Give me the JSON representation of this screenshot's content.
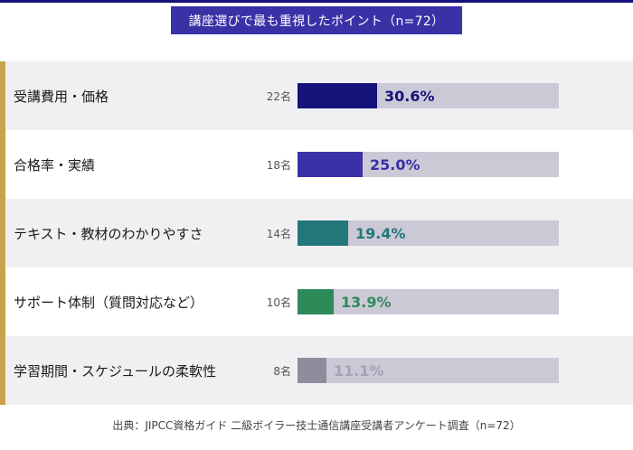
{
  "header": {
    "title": "講座選びで最も重視したポイント（n=72）"
  },
  "chart_data": {
    "type": "bar",
    "orientation": "horizontal",
    "title": "講座選びで最も重視したポイント（n=72）",
    "categories": [
      "受講費用・価格",
      "合格率・実績",
      "テキスト・教材のわかりやすさ",
      "サポート体制（質問対応など）",
      "学習期間・スケジュールの柔軟性"
    ],
    "counts": [
      "22名",
      "18名",
      "14名",
      "10名",
      "8名"
    ],
    "values": [
      30.6,
      25.0,
      19.4,
      13.9,
      11.1
    ],
    "value_labels": [
      "30.6%",
      "25.0%",
      "19.4%",
      "13.9%",
      "11.1%"
    ],
    "xlim": [
      0,
      100
    ],
    "colors": [
      "#15127a",
      "#3a31a7",
      "#23777a",
      "#2f8a5a",
      "#8f8c9c"
    ],
    "label_colors": [
      "#15127a",
      "#3a31a7",
      "#23777a",
      "#2f8a5a",
      "#a6a3b2"
    ]
  },
  "footer": {
    "source": "出典：JIPCC資格ガイド 二級ボイラー技士通信講座受講者アンケート調査（n=72）"
  }
}
